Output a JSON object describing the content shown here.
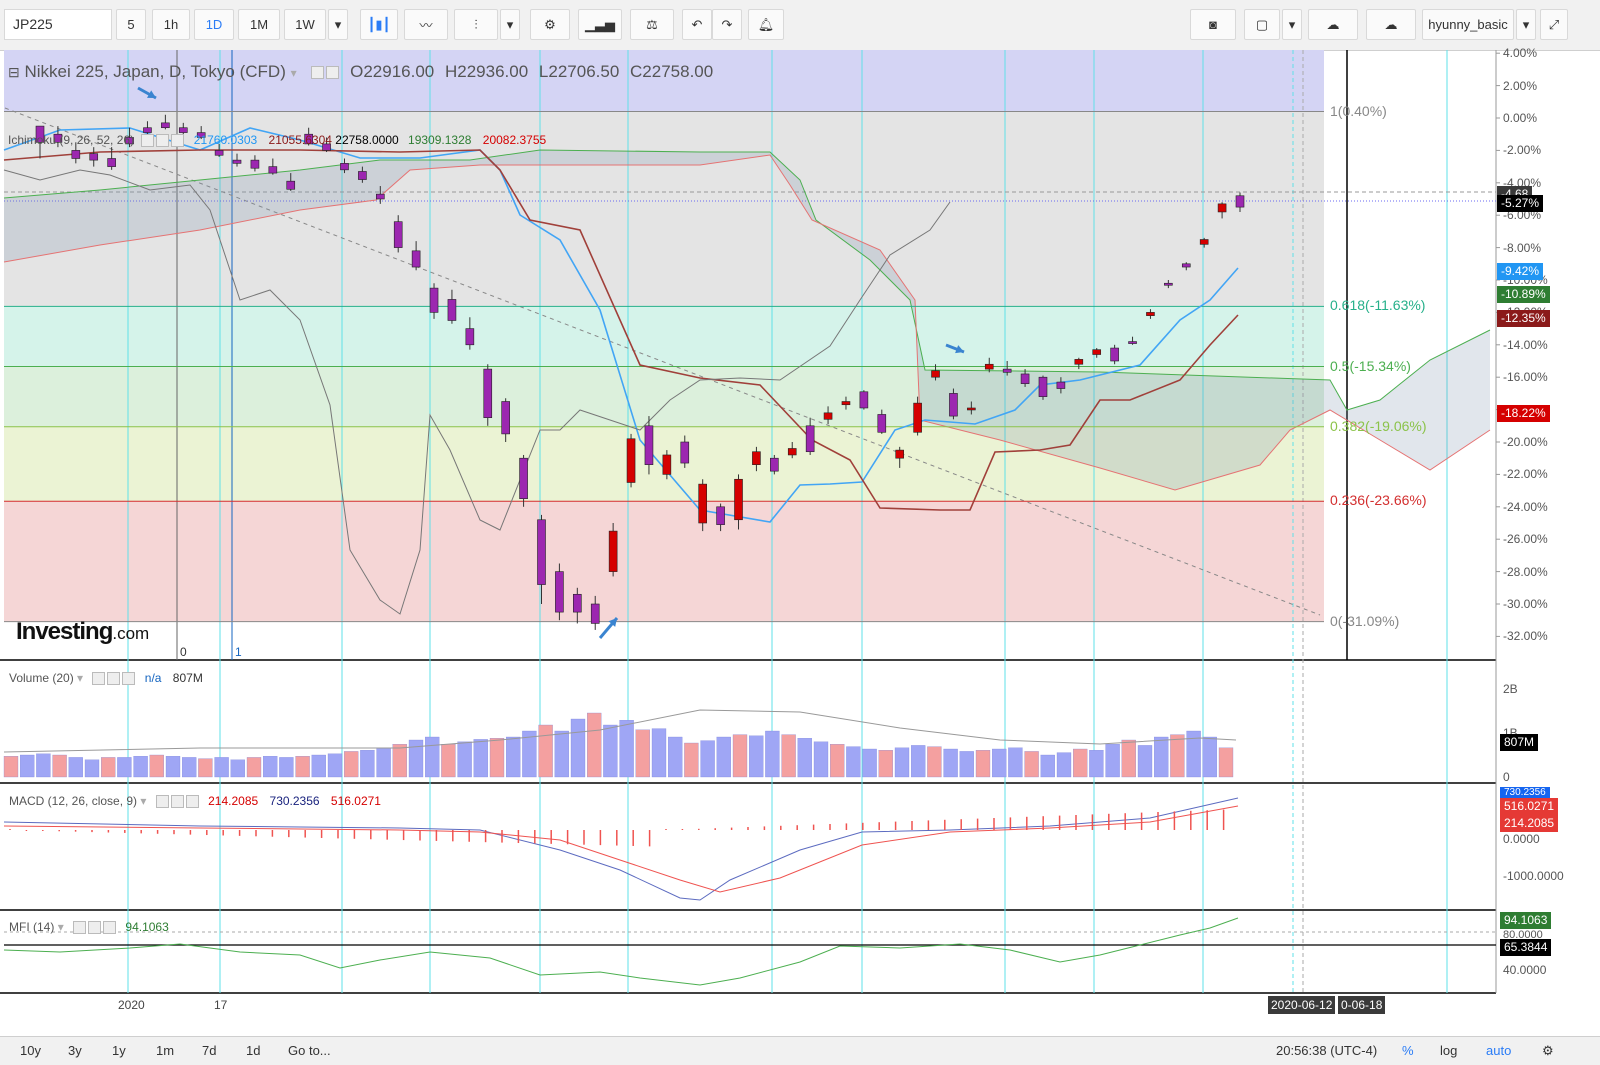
{
  "toolbar": {
    "symbol": "JP225",
    "intervals": [
      "5",
      "1h",
      "1D",
      "1M",
      "1W"
    ],
    "selected_interval": "1D",
    "user": "hyunny_basic",
    "icons": [
      "candles-icon",
      "line-chart-icon",
      "bars-icon",
      "gear-icon",
      "indicators-icon",
      "balance-icon",
      "undo-icon",
      "redo-icon",
      "alert-icon",
      "camera-icon",
      "box-icon",
      "cloud-download-icon",
      "cloud-upload-icon",
      "fullscreen-icon"
    ]
  },
  "main": {
    "title": "Nikkei 225, Japan, D, Tokyo (CFD)",
    "ohlc": {
      "o_label": "O",
      "o": "22916.00",
      "h_label": "H",
      "h": "22936.00",
      "l_label": "L",
      "l": "22706.50",
      "c_label": "C",
      "c": "22758.00"
    },
    "ichimoku": {
      "label": "Ichimoku (9, 26, 52, 26)",
      "v1": "21760.0303",
      "v2": "21055.6304",
      "v3": "22758.0000",
      "v4": "19309.1328",
      "v5": "20082.3755"
    },
    "logo": "Investing",
    "logo_suffix": ".com",
    "fib_left_labels": [
      "0",
      "1"
    ],
    "fib_levels": [
      {
        "label": "1(0.40%)",
        "pct": 0.4,
        "color": "#888888"
      },
      {
        "label": "0.618(-11.63%)",
        "pct": -11.63,
        "color": "#26b08a"
      },
      {
        "label": "0.5(-15.34%)",
        "pct": -15.34,
        "color": "#4caf50"
      },
      {
        "label": "0.382(-19.06%)",
        "pct": -19.06,
        "color": "#8bc34a"
      },
      {
        "label": "0.236(-23.66%)",
        "pct": -23.66,
        "color": "#d32f2f"
      },
      {
        "label": "0(-31.09%)",
        "pct": -31.09,
        "color": "#888888"
      }
    ],
    "axis_ticks": [
      "4.00%",
      "2.00%",
      "0.00%",
      "-2.00%",
      "-4.00%",
      "-6.00%",
      "-8.00%",
      "-10.00%",
      "-12.00%",
      "-14.00%",
      "-16.00%",
      "-18.00%",
      "-20.00%",
      "-22.00%",
      "-24.00%",
      "-26.00%",
      "-28.00%",
      "-30.00%",
      "-32.00%"
    ],
    "price_tags": [
      {
        "text": "-4.68",
        "pct": -4.68,
        "color": "#3a3a3a"
      },
      {
        "text": "-5.27%",
        "pct": -5.27,
        "color": "#000000"
      },
      {
        "text": "-9.42%",
        "pct": -9.42,
        "color": "#2196f3"
      },
      {
        "text": "-10.89%",
        "pct": -10.89,
        "color": "#2e7d32"
      },
      {
        "text": "-12.35%",
        "pct": -12.35,
        "color": "#8b1a1a"
      },
      {
        "text": "-18.22%",
        "pct": -18.22,
        "color": "#d50000"
      }
    ]
  },
  "volume": {
    "label": "Volume (20)",
    "na": "n/a",
    "value": "807M",
    "axis": [
      "2B",
      "1B",
      "0"
    ],
    "tag": "807M"
  },
  "macd": {
    "label": "MACD (12, 26, close, 9)",
    "v1": "214.2085",
    "v2": "730.2356",
    "v3": "516.0271",
    "axis": [
      "0.0000",
      "-1000.0000"
    ],
    "tags": [
      "730.2356",
      "516.0271",
      "214.2085"
    ]
  },
  "mfi": {
    "label": "MFI (14)",
    "value": "94.1063",
    "axis": [
      "80.0000",
      "40.0000"
    ],
    "tags": [
      "94.1063",
      "65.3844"
    ]
  },
  "time_axis": {
    "labels": [
      "2020",
      "17"
    ],
    "crosshair_date": "2020-06-12",
    "crosshair_date2": "0-06-18"
  },
  "bottom_bar": {
    "ranges": [
      "10y",
      "3y",
      "1y",
      "1m",
      "7d",
      "1d"
    ],
    "goto": "Go to...",
    "clock": "20:56:38 (UTC-4)",
    "pct": "%",
    "log": "log",
    "auto": "auto"
  },
  "chart_data": {
    "type": "candlestick",
    "title": "Nikkei 225, Japan, D, Tokyo (CFD)",
    "y_unit": "%",
    "ylim": [
      -33,
      5
    ],
    "candles_pct": [
      [
        -0.5,
        -1,
        -1.5,
        -2.5
      ],
      [
        -1,
        -0.5,
        -1.5,
        -1.8
      ],
      [
        -2,
        -1.5,
        -2.5,
        -2.8
      ],
      [
        -2.2,
        -1.8,
        -2.6,
        -3.0
      ],
      [
        -2.5,
        -1.8,
        -3.0,
        -3.2
      ],
      [
        -1.2,
        -0.6,
        -1.6,
        -1.8
      ],
      [
        -0.6,
        -0.2,
        -0.9,
        -1.1
      ],
      [
        -0.3,
        0.2,
        -0.6,
        -0.7
      ],
      [
        -0.6,
        -0.3,
        -0.9,
        -1.0
      ],
      [
        -0.9,
        -0.5,
        -1.2,
        -1.3
      ],
      [
        -2.0,
        -1.6,
        -2.3,
        -2.4
      ],
      [
        -2.6,
        -2.2,
        -2.8,
        -3.0
      ],
      [
        -2.6,
        -2.3,
        -3.1,
        -3.3
      ],
      [
        -3.0,
        -2.5,
        -3.4,
        -3.5
      ],
      [
        -3.9,
        -3.4,
        -4.4,
        -4.5
      ],
      [
        -1.0,
        -0.6,
        -1.6,
        -1.7
      ],
      [
        -1.6,
        -1.2,
        -2.0,
        -2.1
      ],
      [
        -2.8,
        -2.5,
        -3.2,
        -3.4
      ],
      [
        -3.3,
        -3.0,
        -3.8,
        -4.0
      ],
      [
        -4.7,
        -4.2,
        -5.0,
        -5.3
      ],
      [
        -6.4,
        -6.0,
        -8.0,
        -8.3
      ],
      [
        -8.2,
        -7.6,
        -9.2,
        -9.4
      ],
      [
        -10.5,
        -10.2,
        -12.0,
        -12.4
      ],
      [
        -11.2,
        -10.6,
        -12.5,
        -12.7
      ],
      [
        -13.0,
        -12.3,
        -14.0,
        -14.3
      ],
      [
        -15.5,
        -15.2,
        -18.5,
        -19.0
      ],
      [
        -17.5,
        -17.3,
        -19.5,
        -20.0
      ],
      [
        -21.0,
        -20.8,
        -23.5,
        -24.0
      ],
      [
        -24.8,
        -24.5,
        -28.8,
        -30.0
      ],
      [
        -28.0,
        -27.5,
        -30.5,
        -31.0
      ],
      [
        -29.4,
        -29.0,
        -30.5,
        -31.2
      ],
      [
        -30.0,
        -29.5,
        -31.2,
        -31.6
      ],
      [
        -28.0,
        -25.0,
        -25.5,
        -28.3
      ],
      [
        -22.5,
        -19.5,
        -19.8,
        -22.8
      ],
      [
        -19.0,
        -18.4,
        -21.4,
        -22.0
      ],
      [
        -22.0,
        -20.5,
        -20.8,
        -22.3
      ],
      [
        -20.0,
        -19.6,
        -21.3,
        -21.6
      ],
      [
        -25.0,
        -22.3,
        -22.6,
        -25.5
      ],
      [
        -24.0,
        -23.8,
        -25.1,
        -25.5
      ],
      [
        -24.8,
        -22.0,
        -22.3,
        -25.4
      ],
      [
        -21.4,
        -20.3,
        -20.6,
        -21.8
      ],
      [
        -21.0,
        -20.8,
        -21.8,
        -22.0
      ],
      [
        -20.8,
        -20.0,
        -20.4,
        -21.0
      ],
      [
        -19.0,
        -18.5,
        -20.6,
        -20.8
      ],
      [
        -18.6,
        -17.8,
        -18.2,
        -18.9
      ],
      [
        -17.7,
        -17.2,
        -17.5,
        -18.0
      ],
      [
        -16.9,
        -16.8,
        -17.9,
        -18.0
      ],
      [
        -18.3,
        -18.0,
        -19.4,
        -19.5
      ],
      [
        -21.0,
        -20.3,
        -20.5,
        -21.6
      ],
      [
        -19.4,
        -17.2,
        -17.6,
        -19.6
      ],
      [
        -16.0,
        -15.2,
        -15.6,
        -16.2
      ],
      [
        -17.0,
        -16.7,
        -18.4,
        -18.6
      ],
      [
        -18.0,
        -17.5,
        -17.9,
        -18.3
      ],
      [
        -15.5,
        -14.8,
        -15.2,
        -15.7
      ],
      [
        -15.5,
        -15.0,
        -15.7,
        -15.9
      ],
      [
        -15.8,
        -15.5,
        -16.4,
        -16.6
      ],
      [
        -16.0,
        -15.9,
        -17.2,
        -17.4
      ],
      [
        -16.3,
        -16.0,
        -16.7,
        -17.0
      ],
      [
        -15.2,
        -14.8,
        -14.9,
        -15.5
      ],
      [
        -14.6,
        -14.2,
        -14.3,
        -14.8
      ],
      [
        -14.2,
        -14.0,
        -15.0,
        -15.2
      ],
      [
        -13.8,
        -13.5,
        -13.8,
        -14.0
      ],
      [
        -12.2,
        -11.8,
        -12.0,
        -12.4
      ],
      [
        -10.2,
        -10.0,
        -10.2,
        -10.5
      ],
      [
        -9.0,
        -8.9,
        -9.2,
        -9.4
      ],
      [
        -7.8,
        -7.4,
        -7.5,
        -8.0
      ],
      [
        -5.8,
        -5.2,
        -5.3,
        -6.2
      ],
      [
        -4.8,
        -4.6,
        -5.5,
        -5.8
      ]
    ]
  }
}
